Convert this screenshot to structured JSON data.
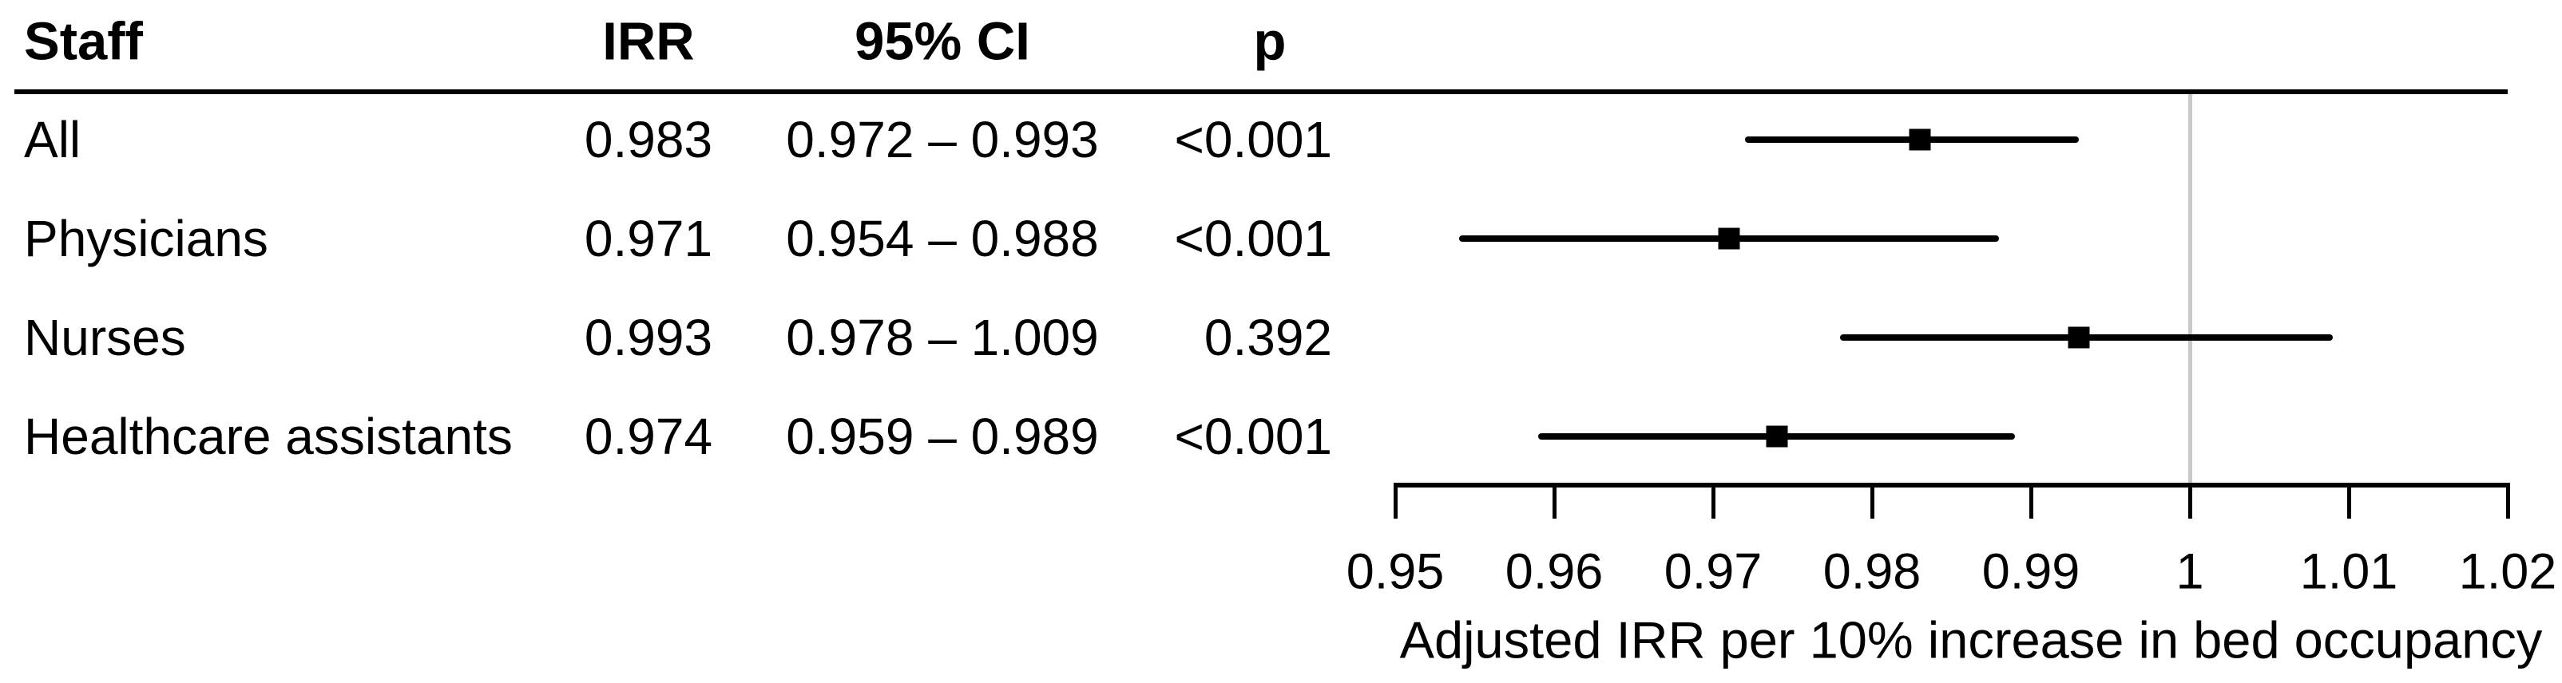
{
  "table": {
    "headers": {
      "staff": "Staff",
      "irr": "IRR",
      "ci": "95% CI",
      "p": "p"
    },
    "rows": [
      {
        "staff": "All",
        "irr": "0.983",
        "ci": "0.972 – 0.993",
        "p": "<0.001"
      },
      {
        "staff": "Physicians",
        "irr": "0.971",
        "ci": "0.954 – 0.988",
        "p": "<0.001"
      },
      {
        "staff": "Nurses",
        "irr": "0.993",
        "ci": "0.978 – 1.009",
        "p": "0.392"
      },
      {
        "staff": "Healthcare assistants",
        "irr": "0.974",
        "ci": "0.959 – 0.989",
        "p": "<0.001"
      }
    ]
  },
  "chart_data": {
    "type": "forest",
    "categories": [
      "All",
      "Physicians",
      "Nurses",
      "Healthcare assistants"
    ],
    "series": [
      {
        "name": "All",
        "estimate": 0.983,
        "ci_low": 0.972,
        "ci_high": 0.993,
        "p": "<0.001"
      },
      {
        "name": "Physicians",
        "estimate": 0.971,
        "ci_low": 0.954,
        "ci_high": 0.988,
        "p": "<0.001"
      },
      {
        "name": "Nurses",
        "estimate": 0.993,
        "ci_low": 0.978,
        "ci_high": 1.009,
        "p": "0.392"
      },
      {
        "name": "Healthcare assistants",
        "estimate": 0.974,
        "ci_low": 0.959,
        "ci_high": 0.989,
        "p": "<0.001"
      }
    ],
    "xlabel": "Adjusted IRR per 10% increase in bed occupancy",
    "xlim": [
      0.95,
      1.02
    ],
    "xticks": [
      {
        "value": 0.95,
        "label": "0.95"
      },
      {
        "value": 0.96,
        "label": "0.96"
      },
      {
        "value": 0.97,
        "label": "0.97"
      },
      {
        "value": 0.98,
        "label": "0.98"
      },
      {
        "value": 0.99,
        "label": "0.99"
      },
      {
        "value": 1.0,
        "label": "1"
      },
      {
        "value": 1.01,
        "label": "1.01"
      },
      {
        "value": 1.02,
        "label": "1.02"
      }
    ],
    "reference_line": 1.0,
    "grid": false,
    "legend": "none"
  },
  "colors": {
    "text": "#000000",
    "lines": "#000000",
    "marker": "#000000",
    "reference_line": "#c8c8c8",
    "background": "#ffffff"
  }
}
